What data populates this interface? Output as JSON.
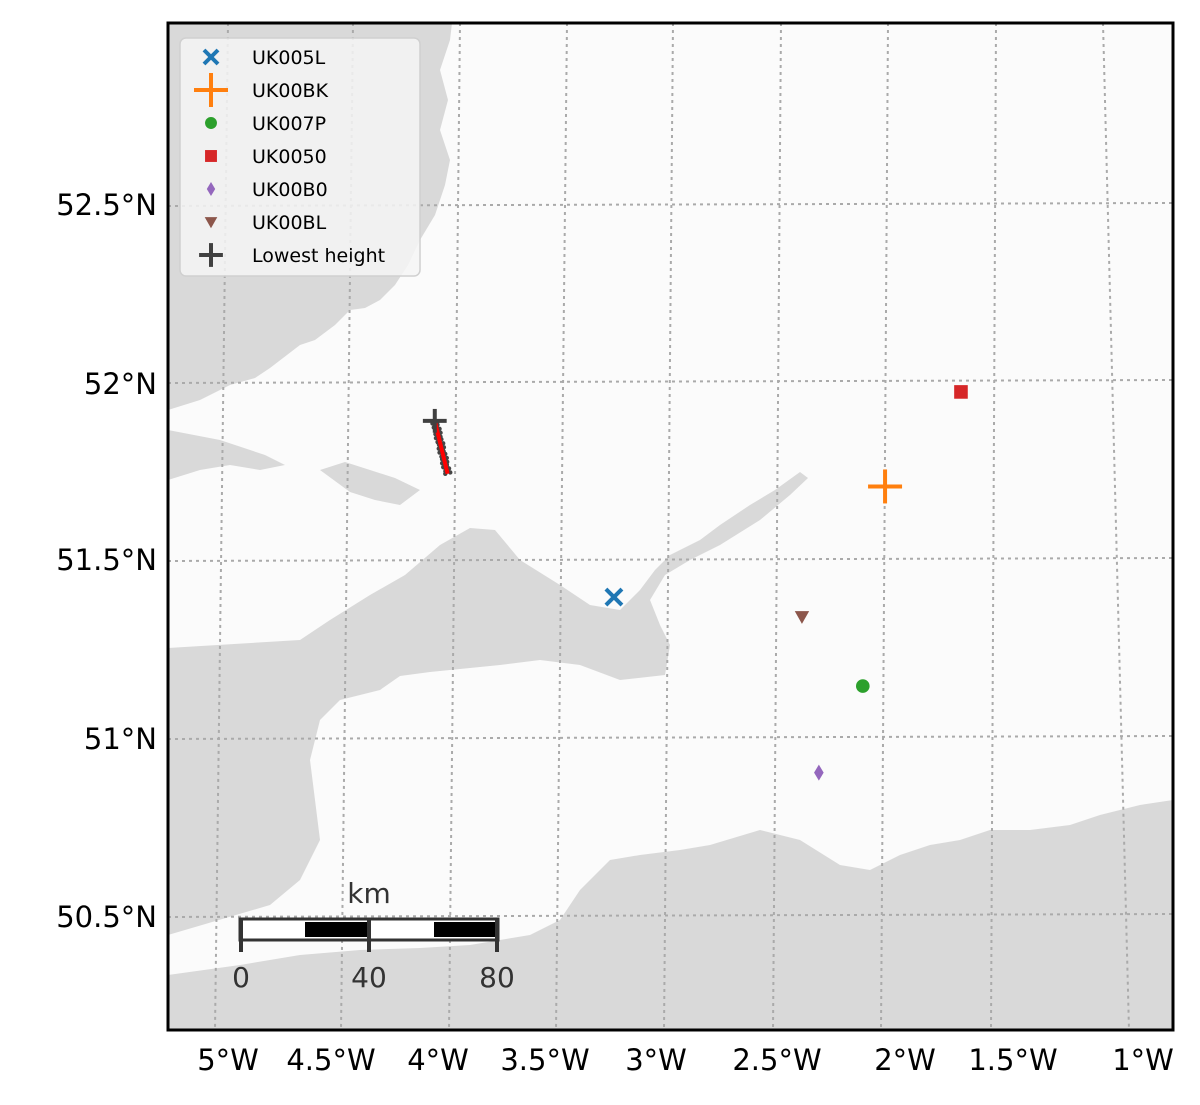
{
  "map": {
    "lon_ticks": [
      {
        "value": -5.0,
        "label": "5°W"
      },
      {
        "value": -4.5,
        "label": "4.5°W"
      },
      {
        "value": -4.0,
        "label": "4°W"
      },
      {
        "value": -3.5,
        "label": "3.5°W"
      },
      {
        "value": -3.0,
        "label": "3°W"
      },
      {
        "value": -2.5,
        "label": "2.5°W"
      },
      {
        "value": -2.0,
        "label": "2°W"
      },
      {
        "value": -1.5,
        "label": "1.5°W"
      },
      {
        "value": -1.0,
        "label": "1°W"
      }
    ],
    "lat_ticks": [
      {
        "value": 52.5,
        "label": "52.5°N"
      },
      {
        "value": 52.0,
        "label": "52°N"
      },
      {
        "value": 51.5,
        "label": "51.5°N"
      },
      {
        "value": 51.0,
        "label": "51°N"
      },
      {
        "value": 50.5,
        "label": "50.5°N"
      }
    ],
    "colors": {
      "sea": "#d9d9d9",
      "land": "#fbfbfb",
      "grid": "#aaaaaa",
      "track": "#ff0000",
      "track_points": "#444444"
    },
    "stations": [
      {
        "name": "UK005L",
        "lon": -3.28,
        "lat": 51.42,
        "marker": "x",
        "color": "#1f77b4"
      },
      {
        "name": "UK00BK",
        "lon": -2.0,
        "lat": 51.71,
        "marker": "plus",
        "color": "#ff7f0e"
      },
      {
        "name": "UK007P",
        "lon": -2.14,
        "lat": 51.15,
        "marker": "circle",
        "color": "#2ca02c"
      },
      {
        "name": "UK0050",
        "lon": -1.63,
        "lat": 51.97,
        "marker": "square",
        "color": "#d62728"
      },
      {
        "name": "UK00B0",
        "lon": -2.36,
        "lat": 50.91,
        "marker": "diamond",
        "color": "#9467bd"
      },
      {
        "name": "UK00BL",
        "lon": -2.41,
        "lat": 51.35,
        "marker": "triangle-down",
        "color": "#8c564b"
      }
    ],
    "lowest_height": {
      "name": "Lowest height",
      "lon": -4.08,
      "lat": 51.93,
      "marker": "plus",
      "color": "#404040"
    },
    "track": [
      [
        -4.08,
        51.93
      ],
      [
        -4.03,
        51.78
      ]
    ],
    "scale_bar": {
      "unit": "km",
      "ticks": [
        "0",
        "40",
        "80"
      ]
    }
  }
}
